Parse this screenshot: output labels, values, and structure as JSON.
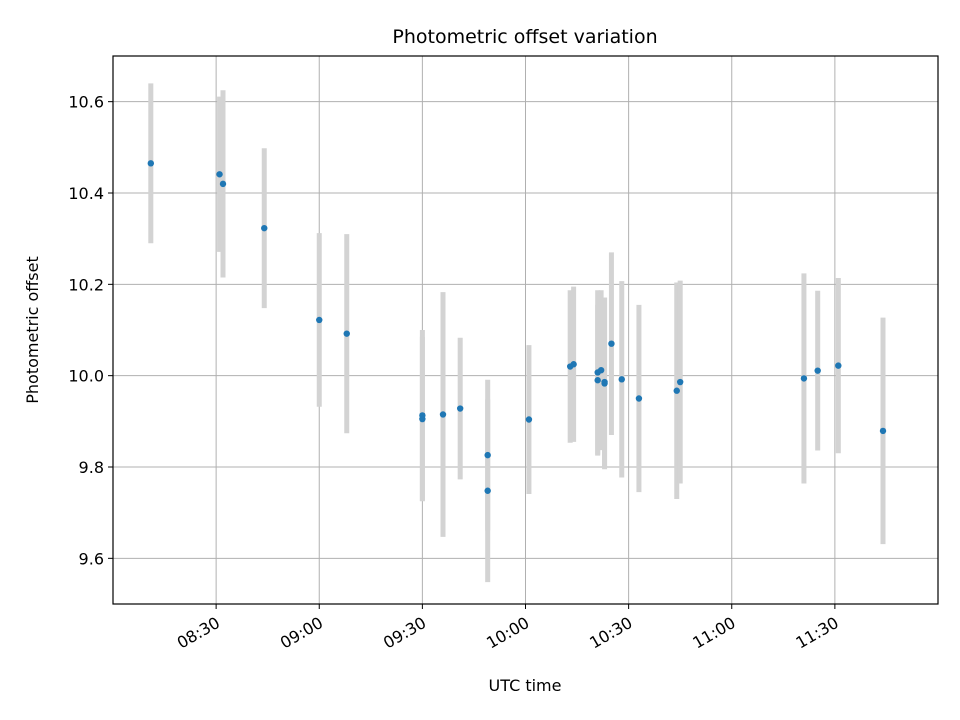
{
  "chart_data": {
    "type": "scatter",
    "title": "Photometric offset variation",
    "xlabel": "UTC time",
    "ylabel": "Photometric offset",
    "x_ticks": [
      "08:30",
      "09:00",
      "09:30",
      "10:00",
      "10:30",
      "11:00",
      "11:30"
    ],
    "y_ticks": [
      "9.6",
      "9.8",
      "10.0",
      "10.2",
      "10.4",
      "10.6"
    ],
    "xlim": [
      "08:00",
      "12:00"
    ],
    "ylim": [
      9.5,
      10.7
    ],
    "grid": true,
    "colors": {
      "point": "#1f77b4",
      "errorbar": "#d3d3d3"
    },
    "points": [
      {
        "x": "08:11",
        "y": 10.465,
        "yerr": 0.175
      },
      {
        "x": "08:31",
        "y": 10.441,
        "yerr": 0.17
      },
      {
        "x": "08:32",
        "y": 10.42,
        "yerr": 0.205
      },
      {
        "x": "08:44",
        "y": 10.323,
        "yerr": 0.175
      },
      {
        "x": "09:00",
        "y": 10.122,
        "yerr": 0.19
      },
      {
        "x": "09:08",
        "y": 10.092,
        "yerr": 0.218
      },
      {
        "x": "09:30",
        "y": 9.913,
        "yerr": 0.187
      },
      {
        "x": "09:30",
        "y": 9.905,
        "yerr": 0.18
      },
      {
        "x": "09:36",
        "y": 9.915,
        "yerr": 0.268
      },
      {
        "x": "09:41",
        "y": 9.928,
        "yerr": 0.155
      },
      {
        "x": "09:49",
        "y": 9.826,
        "yerr": 0.165
      },
      {
        "x": "09:49",
        "y": 9.748,
        "yerr": 0.2
      },
      {
        "x": "10:01",
        "y": 9.904,
        "yerr": 0.163
      },
      {
        "x": "10:13",
        "y": 10.02,
        "yerr": 0.167
      },
      {
        "x": "10:14",
        "y": 10.025,
        "yerr": 0.17
      },
      {
        "x": "10:21",
        "y": 9.99,
        "yerr": 0.165
      },
      {
        "x": "10:21",
        "y": 10.007,
        "yerr": 0.18
      },
      {
        "x": "10:22",
        "y": 10.012,
        "yerr": 0.175
      },
      {
        "x": "10:23",
        "y": 9.983,
        "yerr": 0.188
      },
      {
        "x": "10:23",
        "y": 9.986,
        "yerr": 0.185
      },
      {
        "x": "10:25",
        "y": 10.07,
        "yerr": 0.2
      },
      {
        "x": "10:28",
        "y": 9.992,
        "yerr": 0.215
      },
      {
        "x": "10:33",
        "y": 9.95,
        "yerr": 0.205
      },
      {
        "x": "10:44",
        "y": 9.967,
        "yerr": 0.237
      },
      {
        "x": "10:45",
        "y": 9.986,
        "yerr": 0.222
      },
      {
        "x": "11:21",
        "y": 9.994,
        "yerr": 0.23
      },
      {
        "x": "11:25",
        "y": 10.011,
        "yerr": 0.175
      },
      {
        "x": "11:31",
        "y": 10.022,
        "yerr": 0.192
      },
      {
        "x": "11:44",
        "y": 9.879,
        "yerr": 0.248
      }
    ]
  }
}
